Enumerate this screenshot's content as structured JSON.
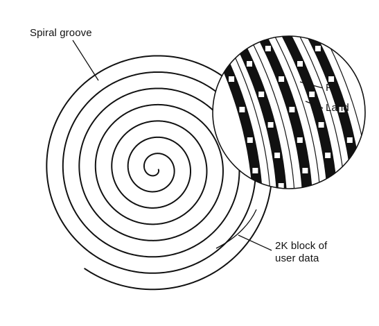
{
  "labels": {
    "spiral_groove": "Spiral groove",
    "pit": "Pit",
    "land": "Land",
    "block_line1": "2K block of",
    "block_line2": "user data"
  },
  "colors": {
    "ink": "#111111",
    "background": "#ffffff"
  },
  "icons": {
    "spiral": "spiral-groove-icon",
    "magnifier": "magnified-track-icon"
  }
}
